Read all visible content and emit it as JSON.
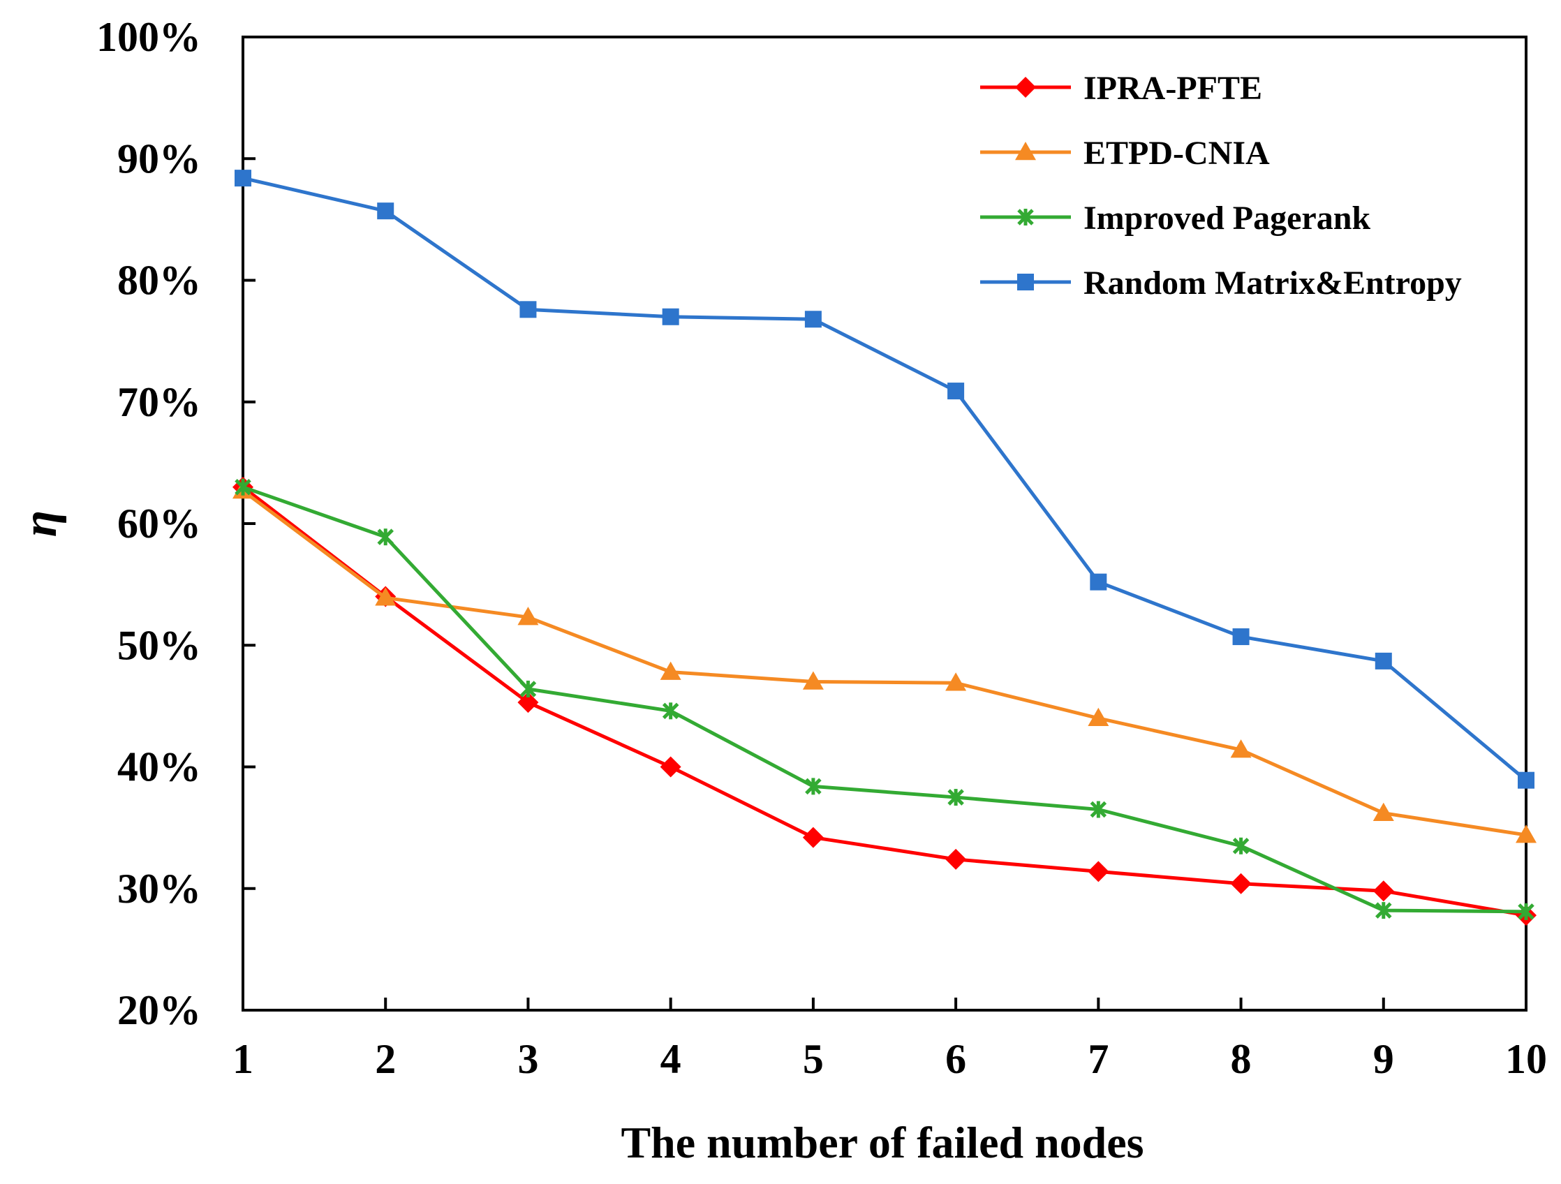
{
  "chart_data": {
    "type": "line",
    "title": "",
    "xlabel": "The number of failed nodes",
    "ylabel": "η",
    "x": [
      1,
      2,
      3,
      4,
      5,
      6,
      7,
      8,
      9,
      10
    ],
    "x_tick_labels": [
      "1",
      "2",
      "3",
      "4",
      "5",
      "6",
      "7",
      "8",
      "9",
      "10"
    ],
    "ylim": [
      0.2,
      1.0
    ],
    "y_ticks": [
      0.2,
      0.3,
      0.4,
      0.5,
      0.6,
      0.7,
      0.8,
      0.9,
      1.0
    ],
    "y_tick_labels": [
      "20%",
      "30%",
      "40%",
      "50%",
      "60%",
      "70%",
      "80%",
      "90%",
      "100%"
    ],
    "grid": false,
    "legend_position": "top-right",
    "series": [
      {
        "name": "IPRA-PFTE",
        "color": "#ff0000",
        "marker": "diamond",
        "values": [
          0.63,
          0.54,
          0.453,
          0.4,
          0.342,
          0.324,
          0.314,
          0.304,
          0.298,
          0.278
        ]
      },
      {
        "name": "ETPD-CNIA",
        "color": "#f58a23",
        "marker": "triangle",
        "values": [
          0.627,
          0.539,
          0.523,
          0.478,
          0.47,
          0.469,
          0.44,
          0.414,
          0.362,
          0.344
        ]
      },
      {
        "name": "Improved Pagerank",
        "color": "#33aa33",
        "marker": "x-star",
        "values": [
          0.63,
          0.589,
          0.464,
          0.446,
          0.384,
          0.375,
          0.365,
          0.335,
          0.282,
          0.281
        ]
      },
      {
        "name": "Random Matrix&Entropy",
        "color": "#2e75cc",
        "marker": "square",
        "values": [
          0.884,
          0.857,
          0.776,
          0.77,
          0.768,
          0.709,
          0.552,
          0.507,
          0.487,
          0.389
        ]
      }
    ]
  }
}
